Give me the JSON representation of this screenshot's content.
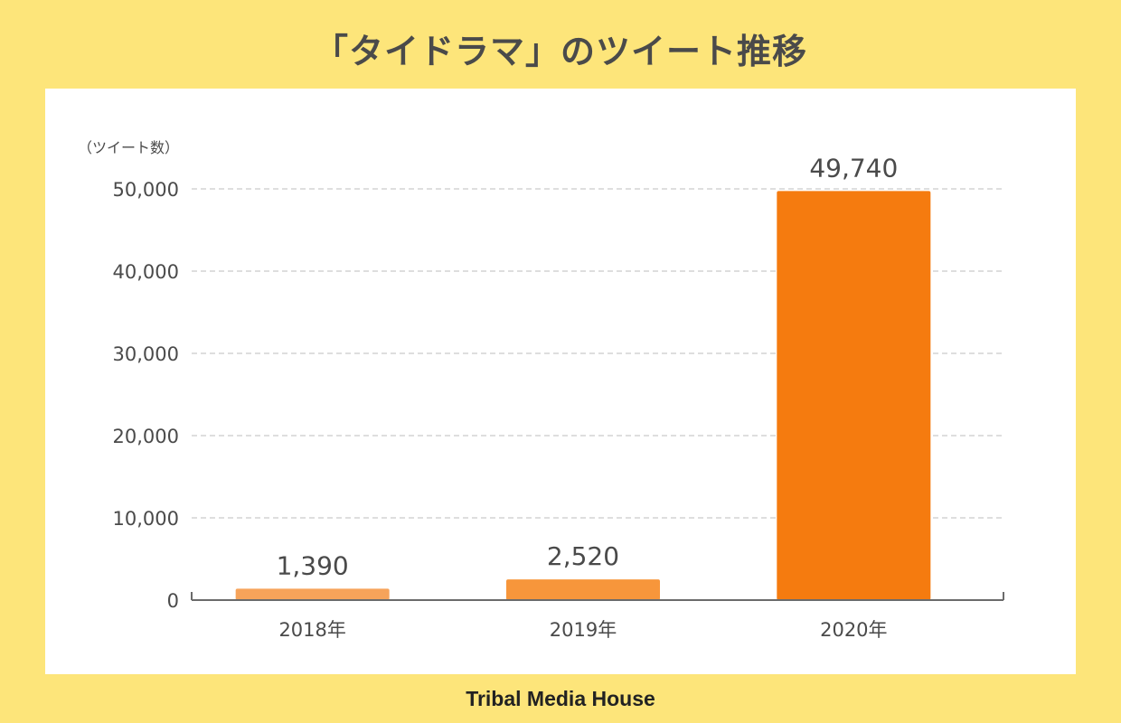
{
  "title": "「タイドラマ」のツイート推移",
  "footer": "Tribal Media House",
  "chart_data": {
    "type": "bar",
    "title": "「タイドラマ」のツイート推移",
    "ylabel": "（ツイート数）",
    "xlabel": "",
    "categories": [
      "2018年",
      "2019年",
      "2020年"
    ],
    "values": [
      1390,
      2520,
      49740
    ],
    "data_labels": [
      "1,390",
      "2,520",
      "49,740"
    ],
    "yticks": [
      0,
      10000,
      20000,
      30000,
      40000,
      50000
    ],
    "ytick_labels": [
      "0",
      "10,000",
      "20,000",
      "30,000",
      "40,000",
      "50,000"
    ],
    "ylim": [
      0,
      50000
    ],
    "grid": true,
    "bar_colors": [
      "#f6a35a",
      "#f7963b",
      "#f57b0f"
    ]
  }
}
